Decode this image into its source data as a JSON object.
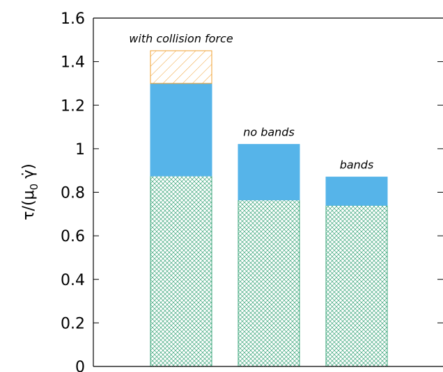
{
  "chart_data": {
    "type": "bar",
    "title": "",
    "xlabel": "",
    "ylabel": "τ/(μ0 γ̇)",
    "ylabel_parts": {
      "pre": "τ/(μ",
      "sub": "0",
      "mid": " γ",
      "dot": "̇",
      "post": ")"
    },
    "ylim": [
      0,
      1.6
    ],
    "yticks": [
      0,
      0.2,
      0.4,
      0.6,
      0.8,
      1,
      1.2,
      1.4,
      1.6
    ],
    "ytick_labels": [
      "0",
      "0.2",
      "0.4",
      "0.6",
      "0.8",
      "1",
      "1.2",
      "1.4",
      "1.6"
    ],
    "grid": false,
    "stacked": true,
    "categories": [
      "with collision force",
      "no bands",
      "bands"
    ],
    "series": [
      {
        "pattern": "crosshatch",
        "color": "#3aa57a",
        "values": [
          0.875,
          0.765,
          0.74
        ]
      },
      {
        "pattern": "solid",
        "color": "#56b4e9",
        "values": [
          0.425,
          0.255,
          0.13
        ]
      },
      {
        "pattern": "diagonal-hatch",
        "color": "#f0a030",
        "values": [
          0.15,
          0,
          0
        ]
      }
    ],
    "annotations": [
      {
        "text": "with collision force",
        "bar": 0
      },
      {
        "text": "no bands",
        "bar": 1
      },
      {
        "text": "bands",
        "bar": 2
      }
    ]
  }
}
